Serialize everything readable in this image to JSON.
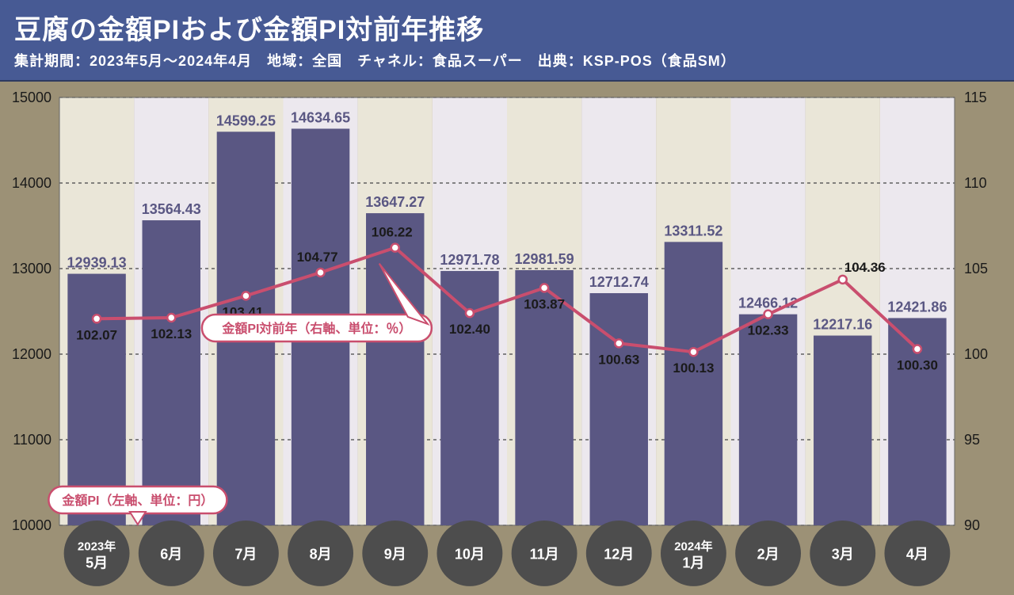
{
  "header": {
    "title": "豆腐の金額PIおよび金額PI対前年推移",
    "subtitle": "集計期間：2023年5月～2024年4月　地域：全国　チャネル：食品スーパー　出典：KSP-POS（食品SM）"
  },
  "chart": {
    "type": "bar+line",
    "months": [
      "2023年\n5月",
      "6月",
      "7月",
      "8月",
      "9月",
      "10月",
      "11月",
      "12月",
      "2024年\n1月",
      "2月",
      "3月",
      "4月"
    ],
    "bar_values": [
      12939.13,
      13564.43,
      14599.25,
      14634.65,
      13647.27,
      12971.78,
      12981.59,
      12712.74,
      13311.52,
      12466.12,
      12217.16,
      12421.86
    ],
    "line_values": [
      102.07,
      102.13,
      103.41,
      104.77,
      106.22,
      102.4,
      103.87,
      100.63,
      100.13,
      102.33,
      104.36,
      100.3
    ],
    "bar_color": "#5a5783",
    "line_color": "#c94e6e",
    "marker_fill": "#ffffff",
    "grid_dash_color": "#444444",
    "alt_bg_colors": [
      "#eae6d8",
      "#ece8ee"
    ],
    "frame_bg": "#9c9176",
    "header_bg": "#475a94",
    "text_color": "#1a1a1a",
    "left_axis": {
      "min": 10000,
      "max": 15000,
      "step": 1000
    },
    "right_axis": {
      "min": 90,
      "max": 115,
      "step": 5
    },
    "callout_line": "金額PI対前年（右軸、単位：％）",
    "callout_bar": "金額PI（左軸、単位：円）",
    "title_fontsize": 34,
    "subtitle_fontsize": 18,
    "barlabel_fontsize": 18,
    "linelabel_fontsize": 17,
    "axislabel_fontsize": 18,
    "xlabel_fontsize": 18,
    "marker_radius": 5,
    "line_width": 4,
    "bar_width_ratio": 0.78,
    "xcircle_fill": "#4d4d4d"
  }
}
